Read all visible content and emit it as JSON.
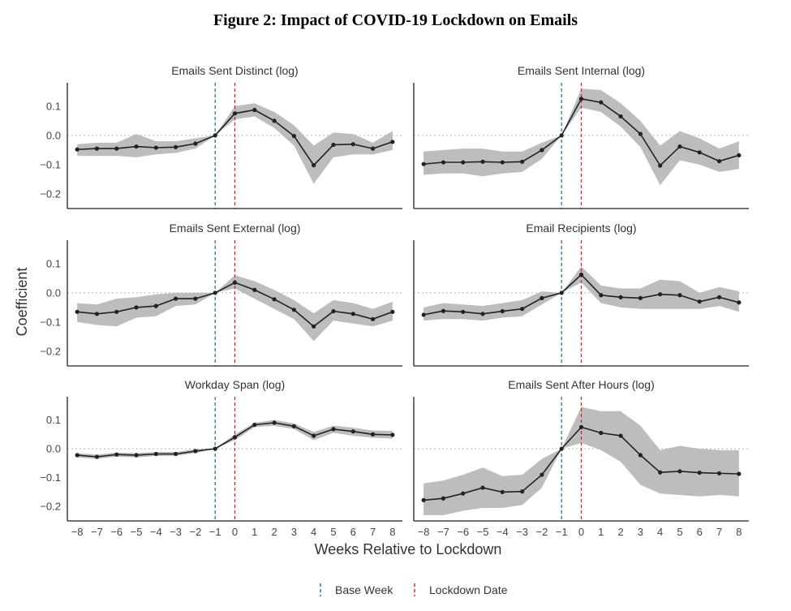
{
  "title": "Figure 2: Impact of COVID-19 Lockdown on Emails",
  "chart_data": {
    "type": "line",
    "xlabel": "Weeks Relative to Lockdown",
    "ylabel": "Coefficient",
    "x": [
      -8,
      -7,
      -6,
      -5,
      -4,
      -3,
      -2,
      -1,
      0,
      1,
      2,
      3,
      4,
      5,
      6,
      7,
      8
    ],
    "xticks": [
      "−8",
      "−7",
      "−6",
      "−5",
      "−4",
      "−3",
      "−2",
      "−1",
      "0",
      "1",
      "2",
      "3",
      "4",
      "5",
      "6",
      "7",
      "8"
    ],
    "ylim": [
      -0.25,
      0.18
    ],
    "yticks": [
      0.1,
      0.0,
      -0.1,
      -0.2
    ],
    "ytick_labels": [
      "0.1",
      "0.0",
      "−0.1",
      "−0.2"
    ],
    "reference_lines": {
      "zero_line": "dotted gray",
      "base_week": {
        "x": -1,
        "color": "#1f77b4",
        "style": "dashed"
      },
      "lockdown_date": {
        "x": 0,
        "color": "#d62728",
        "style": "dashed"
      }
    },
    "legend": {
      "position": "bottom",
      "entries": [
        {
          "label": "Base Week",
          "color": "#1f77b4"
        },
        {
          "label": "Lockdown Date",
          "color": "#d62728"
        }
      ]
    },
    "line_color": "#222222",
    "band_color": "#bdbdbd",
    "panels": [
      {
        "title": "Emails Sent Distinct (log)",
        "values": [
          -0.048,
          -0.045,
          -0.045,
          -0.038,
          -0.042,
          -0.04,
          -0.028,
          0.0,
          0.075,
          0.087,
          0.05,
          -0.002,
          -0.102,
          -0.032,
          -0.03,
          -0.045,
          -0.022
        ],
        "lower": [
          -0.07,
          -0.07,
          -0.07,
          -0.075,
          -0.065,
          -0.06,
          -0.045,
          0.0,
          0.055,
          0.065,
          0.025,
          -0.035,
          -0.165,
          -0.075,
          -0.065,
          -0.065,
          -0.05
        ],
        "upper": [
          -0.03,
          -0.025,
          -0.025,
          0.005,
          -0.02,
          -0.02,
          -0.01,
          0.0,
          0.1,
          0.11,
          0.08,
          0.035,
          -0.035,
          0.01,
          0.005,
          -0.025,
          0.015
        ]
      },
      {
        "title": "Emails Sent Internal (log)",
        "values": [
          -0.098,
          -0.092,
          -0.092,
          -0.09,
          -0.092,
          -0.09,
          -0.05,
          0.0,
          0.125,
          0.113,
          0.065,
          0.005,
          -0.103,
          -0.038,
          -0.058,
          -0.088,
          -0.068
        ],
        "lower": [
          -0.135,
          -0.13,
          -0.13,
          -0.14,
          -0.13,
          -0.125,
          -0.08,
          0.0,
          0.095,
          0.08,
          0.03,
          -0.04,
          -0.17,
          -0.085,
          -0.1,
          -0.125,
          -0.115
        ],
        "upper": [
          -0.055,
          -0.05,
          -0.045,
          -0.045,
          -0.055,
          -0.055,
          -0.025,
          0.0,
          0.16,
          0.155,
          0.11,
          0.05,
          -0.035,
          0.015,
          -0.01,
          -0.045,
          -0.02
        ]
      },
      {
        "title": "Emails Sent External (log)",
        "values": [
          -0.065,
          -0.072,
          -0.065,
          -0.05,
          -0.045,
          -0.02,
          -0.02,
          0.0,
          0.035,
          0.01,
          -0.022,
          -0.058,
          -0.115,
          -0.063,
          -0.072,
          -0.09,
          -0.065
        ],
        "lower": [
          -0.1,
          -0.11,
          -0.115,
          -0.085,
          -0.08,
          -0.045,
          -0.04,
          0.0,
          0.015,
          -0.02,
          -0.055,
          -0.09,
          -0.165,
          -0.095,
          -0.105,
          -0.115,
          -0.095
        ],
        "upper": [
          -0.035,
          -0.04,
          -0.02,
          -0.015,
          -0.005,
          0.0,
          0.0,
          0.0,
          0.06,
          0.04,
          0.01,
          -0.025,
          -0.07,
          -0.025,
          -0.035,
          -0.055,
          -0.03
        ]
      },
      {
        "title": "Email Recipients (log)",
        "values": [
          -0.075,
          -0.062,
          -0.065,
          -0.072,
          -0.063,
          -0.055,
          -0.018,
          0.0,
          0.062,
          -0.008,
          -0.015,
          -0.018,
          -0.005,
          -0.008,
          -0.03,
          -0.015,
          -0.033
        ],
        "lower": [
          -0.095,
          -0.09,
          -0.09,
          -0.095,
          -0.085,
          -0.08,
          -0.04,
          0.0,
          0.035,
          -0.035,
          -0.05,
          -0.055,
          -0.055,
          -0.055,
          -0.055,
          -0.045,
          -0.065
        ],
        "upper": [
          -0.05,
          -0.035,
          -0.04,
          -0.045,
          -0.035,
          -0.025,
          0.005,
          0.0,
          0.09,
          0.025,
          0.015,
          0.015,
          0.045,
          0.04,
          0.0,
          0.02,
          0.005
        ]
      },
      {
        "title": "Workday Span (log)",
        "values": [
          -0.022,
          -0.028,
          -0.02,
          -0.022,
          -0.018,
          -0.018,
          -0.008,
          0.0,
          0.04,
          0.083,
          0.09,
          0.078,
          0.045,
          0.068,
          0.06,
          0.05,
          0.048
        ],
        "lower": [
          -0.03,
          -0.035,
          -0.027,
          -0.03,
          -0.025,
          -0.025,
          -0.015,
          0.0,
          0.03,
          0.075,
          0.08,
          0.068,
          0.03,
          0.055,
          0.045,
          0.038,
          0.035
        ],
        "upper": [
          -0.015,
          -0.02,
          -0.013,
          -0.015,
          -0.011,
          -0.011,
          -0.002,
          0.0,
          0.05,
          0.09,
          0.1,
          0.088,
          0.058,
          0.08,
          0.073,
          0.063,
          0.062
        ]
      },
      {
        "title": "Emails Sent After Hours (log)",
        "values": [
          -0.178,
          -0.172,
          -0.155,
          -0.135,
          -0.15,
          -0.148,
          -0.09,
          0.0,
          0.075,
          0.055,
          0.045,
          -0.022,
          -0.082,
          -0.078,
          -0.083,
          -0.085,
          -0.087
        ],
        "lower": [
          -0.23,
          -0.23,
          -0.215,
          -0.205,
          -0.205,
          -0.195,
          -0.135,
          0.0,
          0.02,
          -0.005,
          -0.045,
          -0.125,
          -0.155,
          -0.16,
          -0.165,
          -0.16,
          -0.165
        ],
        "upper": [
          -0.12,
          -0.11,
          -0.09,
          -0.065,
          -0.095,
          -0.09,
          -0.035,
          0.0,
          0.145,
          0.13,
          0.13,
          0.08,
          -0.005,
          0.01,
          0.0,
          -0.005,
          -0.005
        ]
      }
    ]
  }
}
